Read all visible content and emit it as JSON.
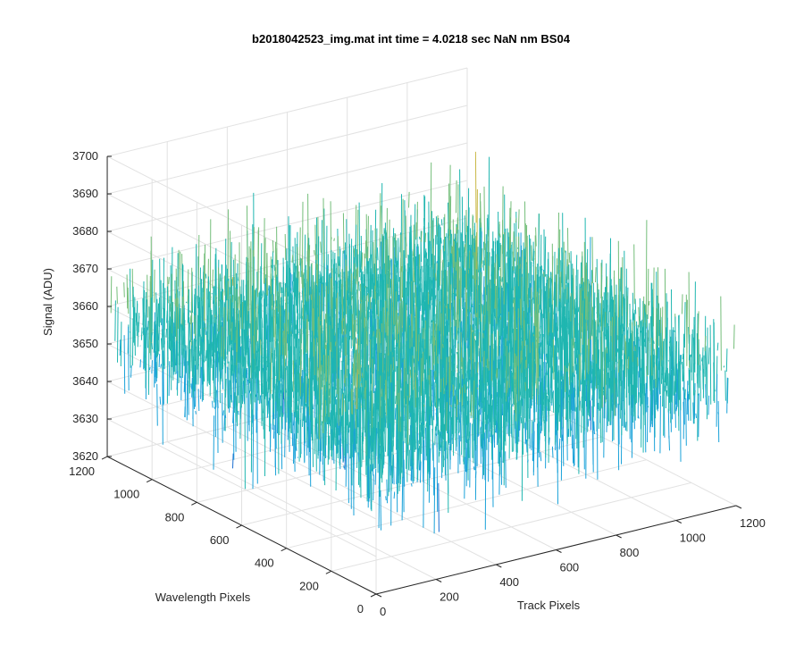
{
  "chart_data": {
    "type": "surface",
    "title": "b2018042523_img.mat int time = 4.0218 sec  NaN nm BS04",
    "xlabel": "Track Pixels",
    "ylabel": "Wavelength Pixels",
    "zlabel": "Signal (ADU)",
    "xlim": [
      0,
      1200
    ],
    "ylim": [
      0,
      1200
    ],
    "zlim": [
      3620,
      3700
    ],
    "xticks": [
      "0",
      "200",
      "400",
      "600",
      "800",
      "1000",
      "1200"
    ],
    "yticks": [
      "0",
      "200",
      "400",
      "600",
      "800",
      "1000",
      "1200"
    ],
    "zticks": [
      "3620",
      "3630",
      "3640",
      "3650",
      "3660",
      "3670",
      "3680",
      "3690",
      "3700"
    ],
    "data_extent": {
      "track_pixels": [
        0,
        1200
      ],
      "wavelength_pixels": [
        0,
        1200
      ]
    },
    "signal_mean": 3655,
    "signal_std": 9,
    "signal_range_visible": [
      3625,
      3700
    ],
    "colormap": [
      "#1c6fd1",
      "#1aa2d9",
      "#1fb6b0",
      "#74be7a",
      "#c9b846",
      "#f0b93a"
    ]
  }
}
